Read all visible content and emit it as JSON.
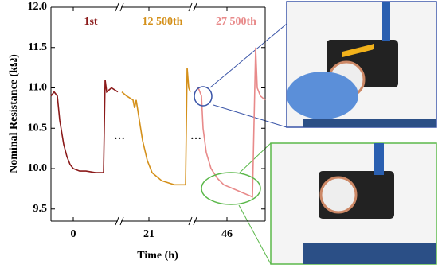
{
  "chart_data": {
    "type": "line",
    "y_label": "Nominal Resistance (kΩ)",
    "x_label": "Time (h)",
    "break_marker": "…",
    "ylim": [
      9.35,
      12.0
    ],
    "yticks": [
      9.5,
      {
        "value": 10,
        "label": "10.0"
      },
      10.5,
      {
        "value": 11,
        "label": "11.0"
      },
      11.5,
      {
        "value": 12,
        "label": "12.0"
      }
    ],
    "panels": [
      {
        "name": "1st",
        "color": "#8b1a1a",
        "xlim": [
          -7,
          14
        ],
        "xticks": [
          0
        ],
        "x": [
          -7,
          -6,
          -5,
          -4.25,
          -3,
          -2,
          -1,
          0,
          2,
          4,
          7,
          9.5,
          10,
          10.5,
          12,
          14
        ],
        "values": [
          10.9,
          10.95,
          10.9,
          10.6,
          10.3,
          10.15,
          10.05,
          10.0,
          9.97,
          9.97,
          9.95,
          9.95,
          11.1,
          10.95,
          11.0,
          10.95
        ]
      },
      {
        "name": "12 500th",
        "color": "#d4901a",
        "xlim": [
          12.25,
          34.25
        ],
        "xticks": [
          21
        ],
        "x": [
          12.5,
          14,
          16,
          16.5,
          17,
          18,
          19,
          20.5,
          22,
          25,
          29,
          32.5,
          33,
          33.5,
          34
        ],
        "values": [
          10.95,
          10.9,
          10.85,
          10.75,
          10.85,
          10.6,
          10.35,
          10.1,
          9.95,
          9.85,
          9.8,
          9.8,
          11.25,
          11.0,
          10.95
        ]
      },
      {
        "name": "27 500th",
        "color": "#e88a8a",
        "xlim": [
          35.75,
          58
        ],
        "xticks": [
          46
        ],
        "x": [
          36,
          37,
          38,
          38.5,
          39.5,
          41,
          43,
          45,
          48,
          51,
          54,
          55,
          55.5,
          56.5,
          58
        ],
        "values": [
          10.95,
          11.0,
          10.9,
          10.5,
          10.2,
          10.0,
          9.88,
          9.8,
          9.75,
          9.7,
          9.65,
          11.5,
          11.0,
          10.9,
          10.85
        ]
      }
    ]
  }
}
